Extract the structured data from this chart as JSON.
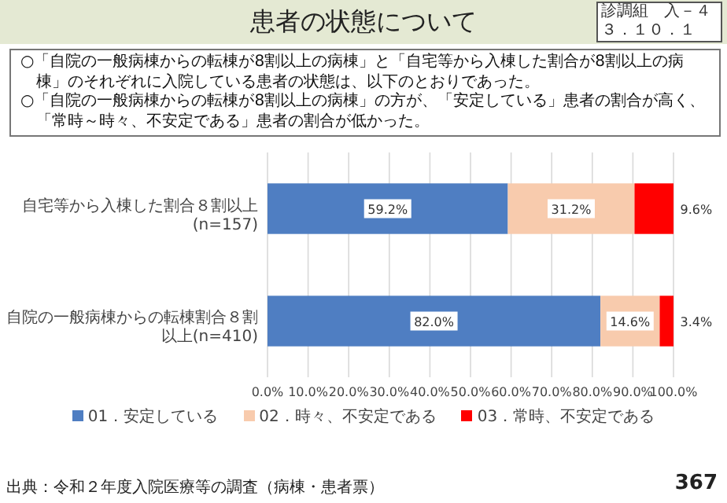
{
  "chart_data": {
    "type": "bar",
    "orientation": "horizontal",
    "stacked": true,
    "title": "患者の状態について",
    "annotations": [
      "診調組　入－４",
      "３．１０．１",
      "○「自院の一般病棟からの転棟が8割以上の病棟」と「自宅等から入棟した割合が8割以上の病棟」のそれぞれに入院している患者の状態は、以下のとおりであった。",
      "○「自院の一般病棟からの転棟が8割以上の病棟」の方が、「安定している」患者の割合が高く、「常時～時々、不安定である」患者の割合が低かった。",
      "出典：令和２年度入院医療等の調査（病棟・患者票）",
      "367"
    ],
    "categories": [
      "自宅等から入棟した割合８割以上(n=157)",
      "自院の一般病棟からの転棟割合８割以上(n=410)"
    ],
    "series": [
      {
        "name": "01．安定している",
        "color": "#4f7ec2",
        "values": [
          59.2,
          82.0
        ],
        "value_labels": [
          "59.2%",
          "82.0%"
        ]
      },
      {
        "name": "02．時々、不安定である",
        "color": "#f8cbad",
        "values": [
          31.2,
          14.6
        ],
        "value_labels": [
          "31.2%",
          "14.6%"
        ]
      },
      {
        "name": "03．常時、不安定である",
        "color": "#ff0000",
        "values": [
          9.6,
          3.4
        ],
        "value_labels": [
          "9.6%",
          "3.4%"
        ]
      }
    ],
    "xlim": [
      0,
      100
    ],
    "xticks": [
      {
        "value": 0,
        "label": "0.0%"
      },
      {
        "value": 10,
        "label": "10.0%"
      },
      {
        "value": 20,
        "label": "20.0%"
      },
      {
        "value": 30,
        "label": "30.0%"
      },
      {
        "value": 40,
        "label": "40.0%"
      },
      {
        "value": 50,
        "label": "50.0%"
      },
      {
        "value": 60,
        "label": "60.0%"
      },
      {
        "value": 70,
        "label": "70.0%"
      },
      {
        "value": 80,
        "label": "80.0%"
      },
      {
        "value": 90,
        "label": "90.0%"
      },
      {
        "value": 100,
        "label": "100.0%"
      }
    ],
    "grid": "x",
    "legend": "bottom"
  }
}
